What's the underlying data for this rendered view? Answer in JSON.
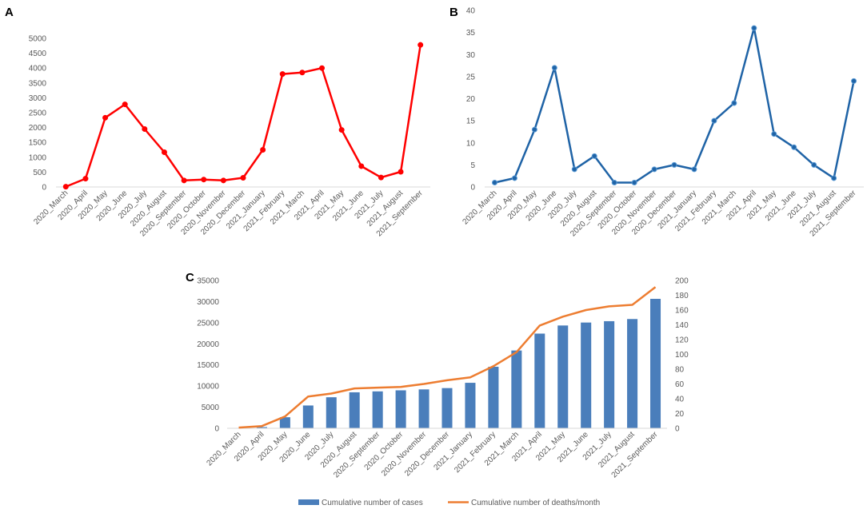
{
  "chart_data": [
    {
      "panel": "A",
      "type": "line",
      "categories": [
        "2020_March",
        "2020_April",
        "2020_May",
        "2020_June",
        "2020_July",
        "2020_August",
        "2020_September",
        "2020_October",
        "2020_November",
        "2020_December",
        "2021_January",
        "2021_February",
        "2021_March",
        "2021_April",
        "2021_May",
        "2021_June",
        "2021_July",
        "2021_August",
        "2021_September"
      ],
      "values": [
        10,
        280,
        2330,
        2780,
        1950,
        1170,
        220,
        250,
        220,
        310,
        1250,
        3800,
        3850,
        4000,
        1920,
        700,
        320,
        510,
        4780
      ],
      "ylim": [
        0,
        5000
      ],
      "yticks": [
        "0",
        "500",
        "1000",
        "1500",
        "2000",
        "2500",
        "3000",
        "3500",
        "4000",
        "4500",
        "5000"
      ],
      "color": "#ff0000",
      "title": "",
      "xlabel": "",
      "ylabel": ""
    },
    {
      "panel": "B",
      "type": "line",
      "categories": [
        "2020_March",
        "2020_April",
        "2020_May",
        "2020_June",
        "2020_July",
        "2020_August",
        "2020_September",
        "2020_October",
        "2020_November",
        "2020_December",
        "2021_January",
        "2021_February",
        "2021_March",
        "2021_April",
        "2021_May",
        "2021_June",
        "2021_July",
        "2021_August",
        "2021_September"
      ],
      "values": [
        1,
        2,
        13,
        27,
        4,
        7,
        1,
        1,
        4,
        5,
        4,
        15,
        19,
        36,
        12,
        9,
        5,
        2,
        24
      ],
      "ylim": [
        0,
        40
      ],
      "yticks": [
        "0",
        "5",
        "10",
        "15",
        "20",
        "25",
        "30",
        "35",
        "40"
      ],
      "color": "#1f63a6",
      "title": "",
      "xlabel": "",
      "ylabel": ""
    },
    {
      "panel": "C",
      "type": "bar+line",
      "categories": [
        "2020_March",
        "2020_April",
        "2020_May",
        "2020_June",
        "2020_July",
        "2020_August",
        "2020_September",
        "2020_October",
        "2020_November",
        "2020_December",
        "2021_January",
        "2021_February",
        "2021_March",
        "2021_April",
        "2021_May",
        "2021_June",
        "2021_July",
        "2021_August",
        "2021_September"
      ],
      "series": [
        {
          "name": "Cumulative number of cases",
          "kind": "bar",
          "axis": "left",
          "color": "#4a7ebb",
          "values": [
            10,
            290,
            2620,
            5400,
            7350,
            8520,
            8740,
            8990,
            9210,
            9520,
            10770,
            14570,
            18420,
            22420,
            24340,
            25040,
            25360,
            25870,
            30650
          ]
        },
        {
          "name": "Cumulative number of deaths/month",
          "kind": "line",
          "axis": "right",
          "color": "#ed7d31",
          "values": [
            1,
            3,
            16,
            43,
            47,
            54,
            55,
            56,
            60,
            65,
            69,
            84,
            103,
            139,
            151,
            160,
            165,
            167,
            191
          ]
        }
      ],
      "ylim_left": [
        0,
        35000
      ],
      "ylim_right": [
        0,
        200
      ],
      "yticks_left": [
        "0",
        "5000",
        "10000",
        "15000",
        "20000",
        "25000",
        "30000",
        "35000"
      ],
      "yticks_right": [
        "0",
        "20",
        "40",
        "60",
        "80",
        "100",
        "120",
        "140",
        "160",
        "180",
        "200"
      ],
      "legend": "bottom",
      "title": "",
      "xlabel": "",
      "ylabel": ""
    }
  ]
}
